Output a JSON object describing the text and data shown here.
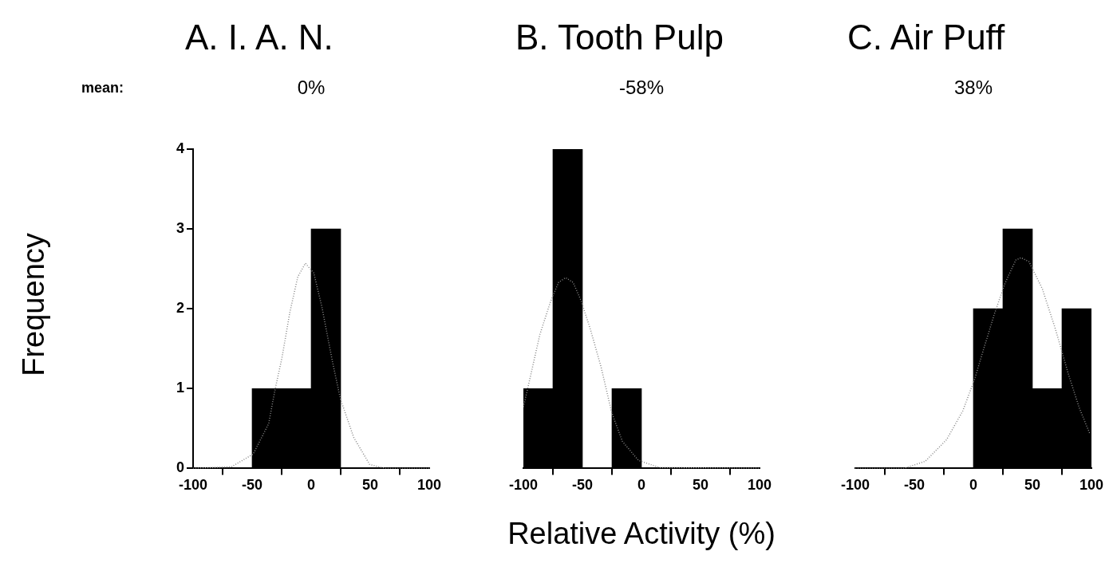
{
  "chart_data": [
    {
      "type": "histogram",
      "title": "A. I. A. N.",
      "subtitle": "0%",
      "annotations": [
        "mean:"
      ],
      "ylabel": "Frequency",
      "bins": [
        -50,
        -25,
        0,
        25
      ],
      "values": [
        1,
        1,
        3
      ],
      "color": "#000000",
      "xlim": [
        -100,
        100
      ],
      "xticks": [
        -100,
        -50,
        0,
        50,
        100
      ],
      "ylim": [
        0,
        4
      ],
      "yticks": [
        0,
        1,
        2,
        3,
        4
      ],
      "series": [
        {
          "type": "line",
          "color": "#888888",
          "line_style": "dotted",
          "x": [
            -100,
            -67.6,
            -49.1,
            -36,
            -30.4,
            -24.8,
            -18,
            -11.3,
            -4.9,
            2.2,
            9,
            18,
            24.8,
            36,
            49.5,
            63,
            100
          ],
          "values": [
            0,
            0.02,
            0.18,
            0.56,
            1,
            1.38,
            1.96,
            2.4,
            2.57,
            2.45,
            2.03,
            1.34,
            0.87,
            0.39,
            0.05,
            0,
            0
          ]
        }
      ]
    },
    {
      "type": "histogram",
      "title": "B. Tooth Pulp",
      "subtitle": "-58%",
      "xlabel": "Relative Activity (%)",
      "bins": [
        -100,
        -75,
        -50,
        -25,
        0
      ],
      "values": [
        1,
        4,
        0,
        1
      ],
      "color": "#000000",
      "xlim": [
        -100,
        100
      ],
      "xticks": [
        -100,
        -50,
        0,
        50,
        100
      ],
      "ylim": [
        0,
        4
      ],
      "tick_labels": "x",
      "series": [
        {
          "type": "line",
          "color": "#888888",
          "line_style": "dotted",
          "x": [
            -100,
            -95,
            -86,
            -77,
            -70.2,
            -64.2,
            -57.9,
            -51.1,
            -43.2,
            -34.2,
            -25.2,
            -16.2,
            -2.5,
            15.5,
            100
          ],
          "values": [
            0.77,
            1.09,
            1.68,
            2.09,
            2.33,
            2.39,
            2.33,
            2.1,
            1.74,
            1.27,
            0.7,
            0.34,
            0.1,
            0.01,
            0
          ]
        }
      ]
    },
    {
      "type": "histogram",
      "title": "C. Air Puff",
      "subtitle": "38%",
      "bins": [
        0,
        25,
        50,
        75,
        100
      ],
      "values": [
        2,
        3,
        1,
        2
      ],
      "color": "#000000",
      "xlim": [
        -100,
        100
      ],
      "xticks": [
        -100,
        -50,
        0,
        50,
        100
      ],
      "ylim": [
        0,
        4
      ],
      "tick_labels": "x",
      "series": [
        {
          "type": "line",
          "color": "#888888",
          "line_style": "dotted",
          "x": [
            -100,
            -58.8,
            -40.7,
            -22.7,
            -9,
            1.1,
            8.8,
            17.9,
            26.8,
            35.9,
            40.4,
            47.1,
            58.4,
            69.6,
            80.9,
            89.9,
            98.5
          ],
          "values": [
            0,
            0,
            0.09,
            0.36,
            0.72,
            1.12,
            1.5,
            1.94,
            2.32,
            2.61,
            2.64,
            2.59,
            2.25,
            1.74,
            1.16,
            0.75,
            0.44
          ]
        }
      ]
    }
  ]
}
